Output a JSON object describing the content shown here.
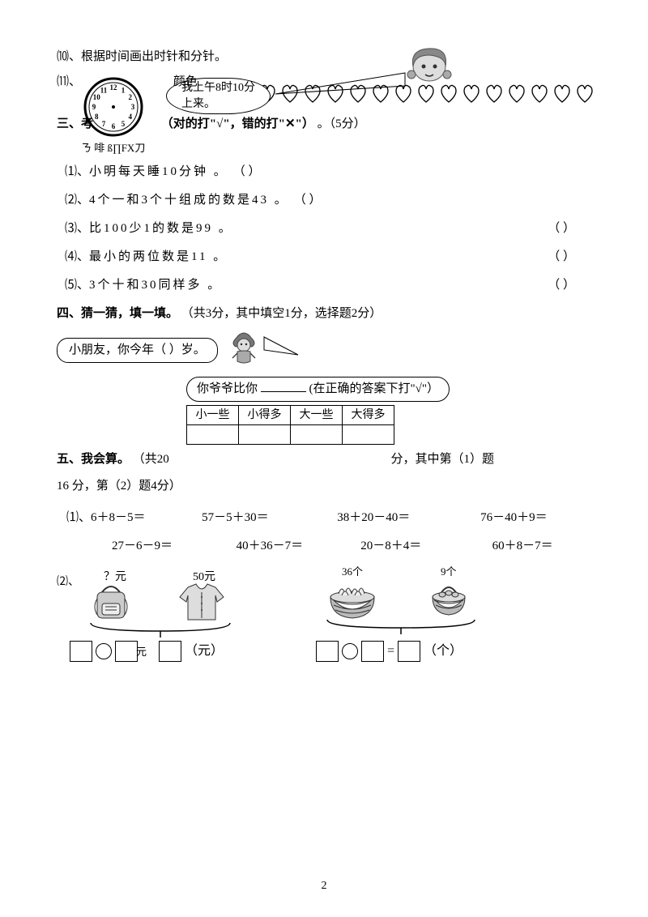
{
  "q10_text": "⑽、根据时间画出时针和分针。",
  "q11_text": "⑾、",
  "q11_color_word": "颜色",
  "bubble_8time_l1": "我上午8时10分",
  "bubble_8time_l2": "上来。",
  "section3_title": "三、考",
  "section3_title_mid": "（对的打\"√\"，错的打\"✕\"）",
  "section3_title_end": "。（5分）",
  "section3_sub": "ㄋ 啡 ß∏FX刀",
  "tf": [
    {
      "n": "⑴、",
      "text": "小明每天睡10分钟 。",
      "paren": "（ ）"
    },
    {
      "n": "⑵、",
      "text": "4个一和3个十组成的数是43 。",
      "paren": "（ ）"
    },
    {
      "n": "⑶、",
      "text": "比100少1的数是99 。",
      "paren": "（     ）"
    },
    {
      "n": "⑷、",
      "text": "最小的两位数是11 。",
      "paren": "（     ）"
    },
    {
      "n": "⑸、",
      "text": "3个十和30同样多 。",
      "paren": "（     ）"
    }
  ],
  "section4_title": "四、猜一猜，填一填。",
  "section4_sub": "（共3分，其中填空1分，选择题2分）",
  "q4_bubble": "小朋友，你今年（    ）岁。",
  "q4_lower_bubble_a": "你爷爷比你",
  "q4_lower_bubble_b": "(在正确的答案下打\"√\"）",
  "q4_headers": [
    "小一些",
    "小得多",
    "大一些",
    "大得多"
  ],
  "section5_title": "五、我会算。",
  "section5_sub_a": "（共20",
  "section5_sub_b": "分，其中第（1）题",
  "section5_sub_c": "16 分，第（2）题4分）",
  "calc1": [
    "⑴、6＋8－5＝",
    "57－5＋30＝",
    "38＋20－40＝",
    "76－40＋9＝"
  ],
  "calc2": [
    "27－6－9＝",
    "40＋36－7＝",
    "20－8＋4＝",
    "60＋8－7＝"
  ],
  "q52": {
    "n": "⑵、",
    "l1": "？元",
    "l2": "50元",
    "l3": "36个",
    "l4": "9个",
    "unit1": "（元）",
    "unit2": "（个）"
  },
  "yuan_char": "元",
  "equals": "=",
  "page": "2",
  "clock_numbers": [
    "12",
    "1",
    "2",
    "3",
    "4",
    "5",
    "6",
    "7",
    "8",
    "9",
    "10",
    "11"
  ],
  "colors": {
    "text": "#000000",
    "bg": "#ffffff",
    "gray": "#888888"
  }
}
